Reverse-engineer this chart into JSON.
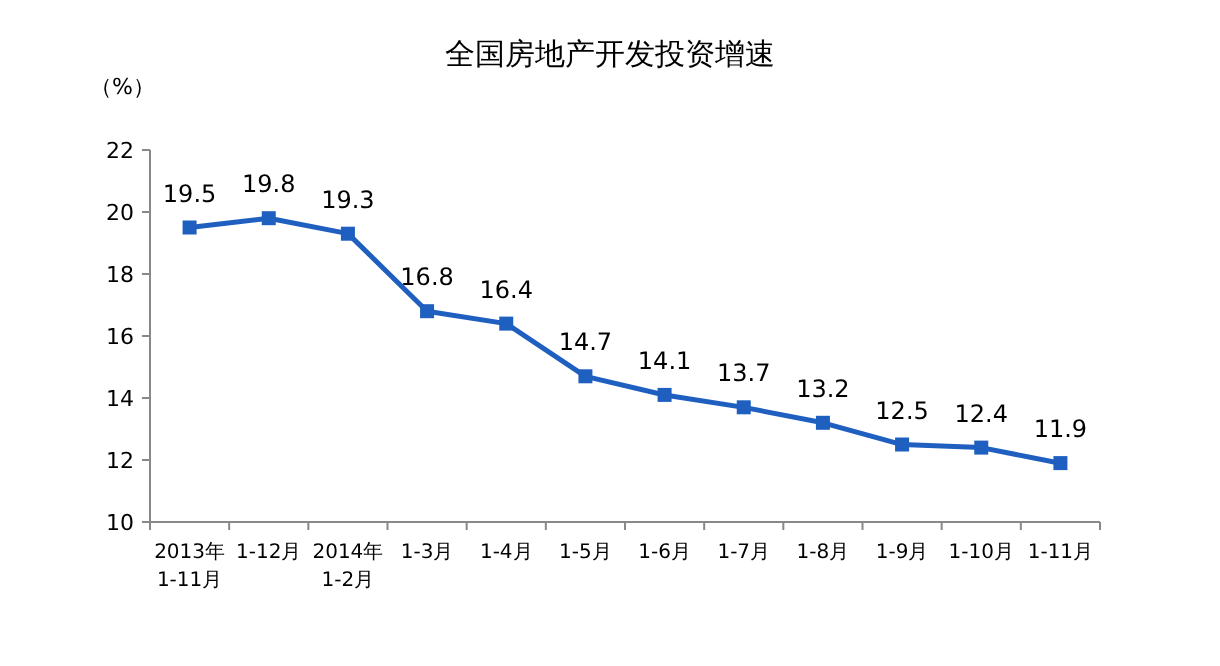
{
  "chart_data": {
    "type": "line",
    "title": "全国房地产开发投资增速",
    "ylabel": "（%）",
    "categories": [
      "2013年\n1-11月",
      "1-12月",
      "2014年\n1-2月",
      "1-3月",
      "1-4月",
      "1-5月",
      "1-6月",
      "1-7月",
      "1-8月",
      "1-9月",
      "1-10月",
      "1-11月"
    ],
    "series": [
      {
        "color": "#1f5fbf",
        "values": [
          19.5,
          19.8,
          19.3,
          16.8,
          16.4,
          14.7,
          14.1,
          13.7,
          13.2,
          12.5,
          12.4,
          11.9
        ]
      }
    ],
    "ylim": [
      10,
      22
    ],
    "yticks": [
      10,
      12,
      14,
      16,
      18,
      20,
      22
    ],
    "marker": "square",
    "line_style": "solid",
    "data_labels": true,
    "grid": false
  }
}
